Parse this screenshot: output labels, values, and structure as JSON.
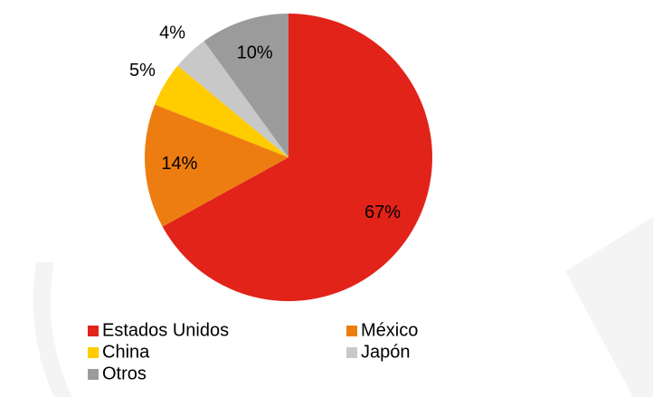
{
  "chart_data": {
    "type": "pie",
    "categories": [
      "Estados Unidos",
      "México",
      "China",
      "Japón",
      "Otros"
    ],
    "values": [
      67,
      14,
      5,
      4,
      10
    ],
    "value_labels": [
      "67%",
      "14%",
      "5%",
      "4%",
      "10%"
    ],
    "colors": [
      "#e2231a",
      "#ee7d11",
      "#ffcc00",
      "#c8c8c8",
      "#9b9b9b"
    ],
    "legend": "bottom"
  }
}
